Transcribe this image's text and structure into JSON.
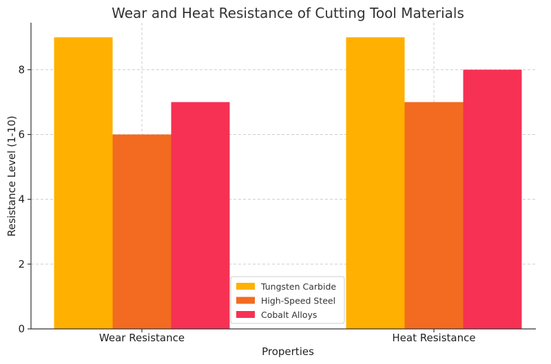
{
  "chart_data": {
    "type": "bar",
    "title": "Wear and Heat Resistance of Cutting Tool Materials",
    "xlabel": "Properties",
    "ylabel": "Resistance Level (1-10)",
    "categories": [
      "Wear Resistance",
      "Heat Resistance"
    ],
    "series": [
      {
        "name": "Tungsten Carbide",
        "values": [
          9,
          9
        ],
        "color": "#FFB000"
      },
      {
        "name": "High-Speed Steel",
        "values": [
          6,
          7
        ],
        "color": "#F26B21"
      },
      {
        "name": "Cobalt Alloys",
        "values": [
          7,
          8
        ],
        "color": "#F63154"
      }
    ],
    "ylim": [
      0,
      9.45
    ],
    "yticks": [
      0,
      2,
      4,
      6,
      8
    ],
    "grid": true,
    "legend_position": "bottom-center"
  }
}
